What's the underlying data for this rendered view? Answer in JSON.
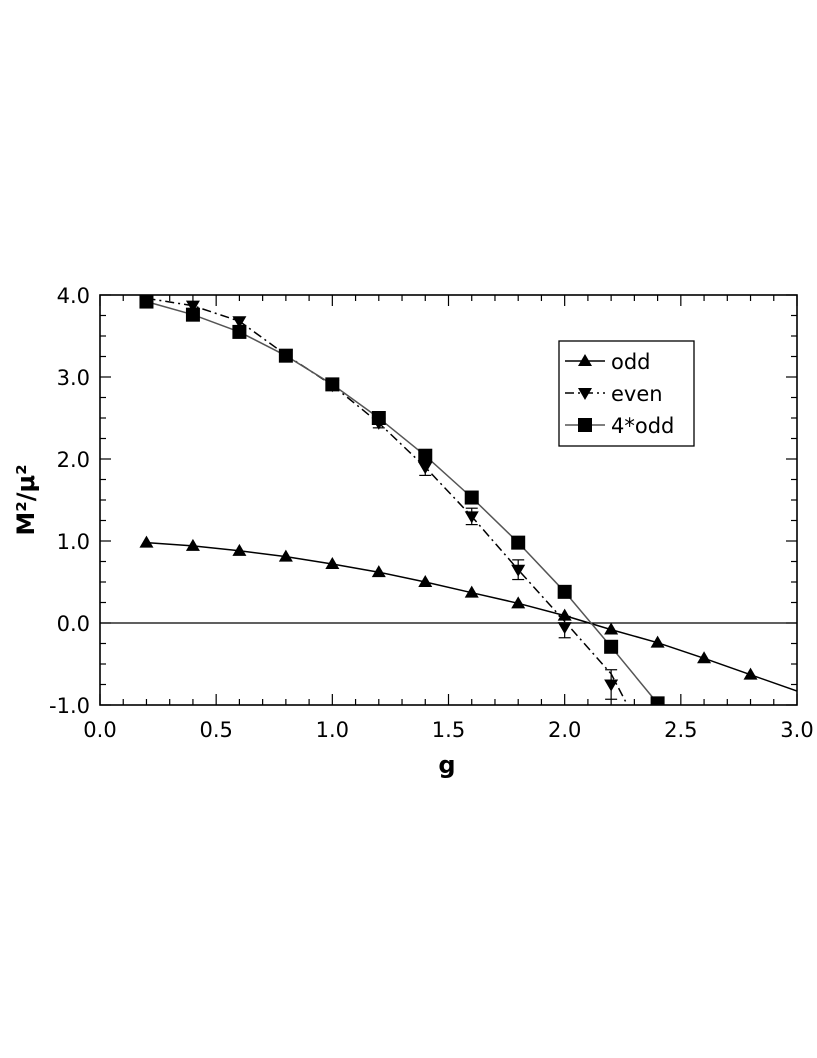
{
  "chart_data": {
    "type": "line",
    "xlabel": "g",
    "ylabel": "M²/μ²",
    "xlim": [
      0.0,
      3.0
    ],
    "ylim": [
      -1.0,
      4.0
    ],
    "x_ticks": [
      "0.0",
      "0.5",
      "1.0",
      "1.5",
      "2.0",
      "2.5",
      "3.0"
    ],
    "y_ticks": [
      "4.0",
      "3.0",
      "2.0",
      "1.0",
      "0.0",
      "-1.0"
    ],
    "grid": false,
    "zero_line": true,
    "legend_position": "top-right",
    "series": [
      {
        "name": "odd",
        "marker": "triangle-up",
        "line_style": "solid",
        "color": "#000000",
        "x": [
          0.2,
          0.4,
          0.6,
          0.8,
          1.0,
          1.2,
          1.4,
          1.6,
          1.8,
          2.0,
          2.2,
          2.4,
          2.6,
          2.8
        ],
        "y": [
          0.98,
          0.94,
          0.88,
          0.81,
          0.72,
          0.62,
          0.5,
          0.37,
          0.24,
          0.09,
          -0.08,
          -0.24,
          -0.43,
          -0.63
        ],
        "curve_x": [
          0.2,
          0.4,
          0.6,
          0.8,
          1.0,
          1.2,
          1.4,
          1.6,
          1.8,
          2.0,
          2.2,
          2.4,
          2.6,
          2.8,
          3.0
        ],
        "curve_y": [
          0.98,
          0.94,
          0.88,
          0.81,
          0.72,
          0.62,
          0.5,
          0.37,
          0.24,
          0.09,
          -0.08,
          -0.24,
          -0.43,
          -0.63,
          -0.83
        ]
      },
      {
        "name": "even",
        "marker": "triangle-down",
        "line_style": "dash-dot",
        "color": "#000000",
        "x": [
          0.2,
          0.4,
          0.6,
          0.8,
          1.0,
          1.2,
          1.4,
          1.6,
          1.8,
          2.0,
          2.2
        ],
        "y": [
          3.96,
          3.87,
          3.68,
          3.27,
          2.9,
          2.44,
          1.9,
          1.3,
          0.65,
          -0.05,
          -0.75
        ],
        "err": [
          0.0,
          0.0,
          0.0,
          0.0,
          0.0,
          0.06,
          0.1,
          0.1,
          0.12,
          0.13,
          0.18
        ],
        "curve_x": [
          0.2,
          0.4,
          0.6,
          0.8,
          1.0,
          1.2,
          1.4,
          1.6,
          1.8,
          2.0,
          2.2,
          2.27
        ],
        "curve_y": [
          3.96,
          3.87,
          3.68,
          3.27,
          2.9,
          2.44,
          1.9,
          1.3,
          0.65,
          0.02,
          -0.62,
          -1.0
        ]
      },
      {
        "name": "4*odd",
        "marker": "square",
        "line_style": "solid",
        "color": "#555555",
        "x": [
          0.2,
          0.4,
          0.6,
          0.8,
          1.0,
          1.2,
          1.4,
          1.6,
          1.8,
          2.0,
          2.2,
          2.4
        ],
        "y": [
          3.92,
          3.76,
          3.55,
          3.26,
          2.91,
          2.5,
          2.04,
          1.53,
          0.98,
          0.38,
          -0.29,
          -0.98
        ],
        "curve_x": [
          0.2,
          0.4,
          0.6,
          0.8,
          1.0,
          1.2,
          1.4,
          1.6,
          1.8,
          2.0,
          2.2,
          2.4
        ],
        "curve_y": [
          3.92,
          3.76,
          3.55,
          3.26,
          2.91,
          2.5,
          2.04,
          1.53,
          0.98,
          0.38,
          -0.29,
          -0.98
        ]
      }
    ]
  }
}
